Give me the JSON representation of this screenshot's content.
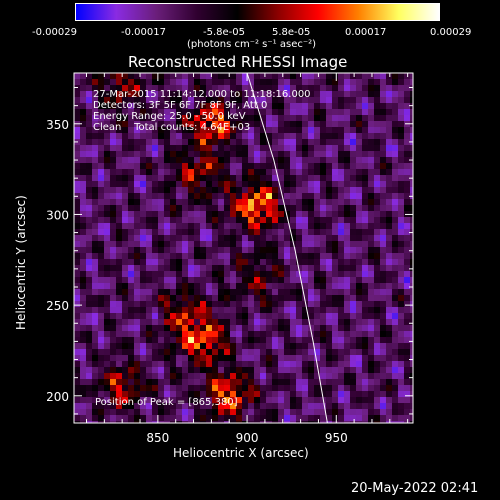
{
  "colorbar": {
    "ticks": [
      "-0.00029",
      "-0.00017",
      "-5.8e-05",
      "5.8e-05",
      "0.00017",
      "0.00029"
    ],
    "unit_label": "(photons cm⁻² s⁻¹ asec⁻²)",
    "colors": [
      "#0000ff",
      "#8a2be2",
      "#6a1e7a",
      "#300030",
      "#000000",
      "#8b0000",
      "#ff0000",
      "#ff8000",
      "#ffff60",
      "#ffffff"
    ]
  },
  "chart_data": {
    "type": "heatmap",
    "title": "Reconstructed RHESSI Image",
    "xlabel": "Heliocentric X (arcsec)",
    "ylabel": "Heliocentric Y (arcsec)",
    "xlim": [
      803,
      993
    ],
    "ylim": [
      185,
      378
    ],
    "x_ticks": [
      850,
      900,
      950
    ],
    "y_ticks": [
      200,
      250,
      300,
      350
    ],
    "info_lines": [
      "27-Mar-2015 11:14:12.000 to 11:18:16.000",
      "Detectors: 3F 5F 6F 7F 8F 9F, Att 0",
      "Energy Range: 25.0 - 50.0 keV",
      "Clean    Total counts: 4.64E+03"
    ],
    "peak_text": "Position of Peak = [865,380]",
    "limb_curve": [
      [
        900,
        378
      ],
      [
        915,
        330
      ],
      [
        927,
        280
      ],
      [
        937,
        230
      ],
      [
        945,
        185
      ]
    ],
    "sources": [
      {
        "x": 905,
        "y": 305,
        "strength": 1.0
      },
      {
        "x": 880,
        "y": 350,
        "strength": 0.85
      },
      {
        "x": 872,
        "y": 322,
        "strength": 0.6
      },
      {
        "x": 875,
        "y": 230,
        "strength": 0.8
      },
      {
        "x": 890,
        "y": 200,
        "strength": 0.85
      },
      {
        "x": 865,
        "y": 245,
        "strength": 0.55
      },
      {
        "x": 830,
        "y": 205,
        "strength": 0.6
      },
      {
        "x": 905,
        "y": 265,
        "strength": 0.45
      },
      {
        "x": 830,
        "y": 370,
        "strength": 0.5
      }
    ]
  },
  "timestamp": "20-May-2022 02:41"
}
